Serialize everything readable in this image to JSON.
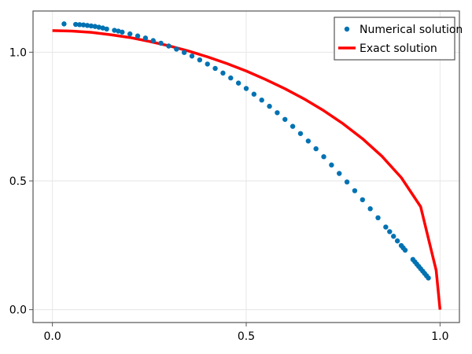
{
  "chart_data": {
    "type": "scatter",
    "title": "",
    "xlabel": "",
    "ylabel": "",
    "xlim": [
      -0.05,
      1.05
    ],
    "ylim": [
      -0.05,
      1.16
    ],
    "xticks": [
      0.0,
      0.5,
      1.0
    ],
    "xtick_labels": [
      "0.0",
      "0.5",
      "1.0"
    ],
    "yticks": [
      0.0,
      0.5,
      1.0
    ],
    "ytick_labels": [
      "0.0",
      "0.5",
      "1.0"
    ],
    "grid": true,
    "legend_position": "top-right",
    "series": [
      {
        "name": "Numerical solution",
        "kind": "scatter",
        "color": "#0072B2",
        "x": [
          0.03,
          0.06,
          0.07,
          0.08,
          0.09,
          0.1,
          0.11,
          0.12,
          0.13,
          0.14,
          0.16,
          0.17,
          0.18,
          0.2,
          0.22,
          0.24,
          0.26,
          0.28,
          0.3,
          0.32,
          0.34,
          0.36,
          0.38,
          0.4,
          0.42,
          0.44,
          0.46,
          0.48,
          0.5,
          0.52,
          0.54,
          0.56,
          0.58,
          0.6,
          0.62,
          0.64,
          0.66,
          0.68,
          0.7,
          0.72,
          0.74,
          0.76,
          0.78,
          0.8,
          0.82,
          0.84,
          0.86,
          0.87,
          0.88,
          0.89,
          0.9,
          0.905,
          0.91,
          0.93,
          0.935,
          0.94,
          0.945,
          0.95,
          0.955,
          0.96,
          0.965,
          0.97
        ],
        "y": [
          1.11,
          1.108,
          1.107,
          1.106,
          1.104,
          1.102,
          1.1,
          1.097,
          1.094,
          1.09,
          1.085,
          1.082,
          1.078,
          1.071,
          1.063,
          1.055,
          1.045,
          1.035,
          1.024,
          1.012,
          0.999,
          0.985,
          0.97,
          0.954,
          0.937,
          0.919,
          0.9,
          0.88,
          0.859,
          0.837,
          0.814,
          0.79,
          0.765,
          0.739,
          0.712,
          0.684,
          0.655,
          0.625,
          0.594,
          0.562,
          0.529,
          0.496,
          0.462,
          0.427,
          0.392,
          0.357,
          0.321,
          0.303,
          0.285,
          0.267,
          0.249,
          0.24,
          0.231,
          0.195,
          0.186,
          0.177,
          0.168,
          0.159,
          0.15,
          0.141,
          0.132,
          0.123
        ]
      },
      {
        "name": "Exact solution",
        "kind": "line",
        "color": "#FF0000",
        "x": [
          0.0,
          0.05,
          0.1,
          0.15,
          0.2,
          0.25,
          0.3,
          0.35,
          0.4,
          0.45,
          0.5,
          0.55,
          0.6,
          0.65,
          0.7,
          0.75,
          0.8,
          0.85,
          0.9,
          0.95,
          0.99,
          1.0
        ],
        "y": [
          1.084,
          1.082,
          1.077,
          1.068,
          1.057,
          1.042,
          1.025,
          1.005,
          0.982,
          0.956,
          0.927,
          0.894,
          0.858,
          0.818,
          0.773,
          0.722,
          0.664,
          0.596,
          0.513,
          0.4,
          0.153,
          0.0
        ]
      }
    ]
  }
}
